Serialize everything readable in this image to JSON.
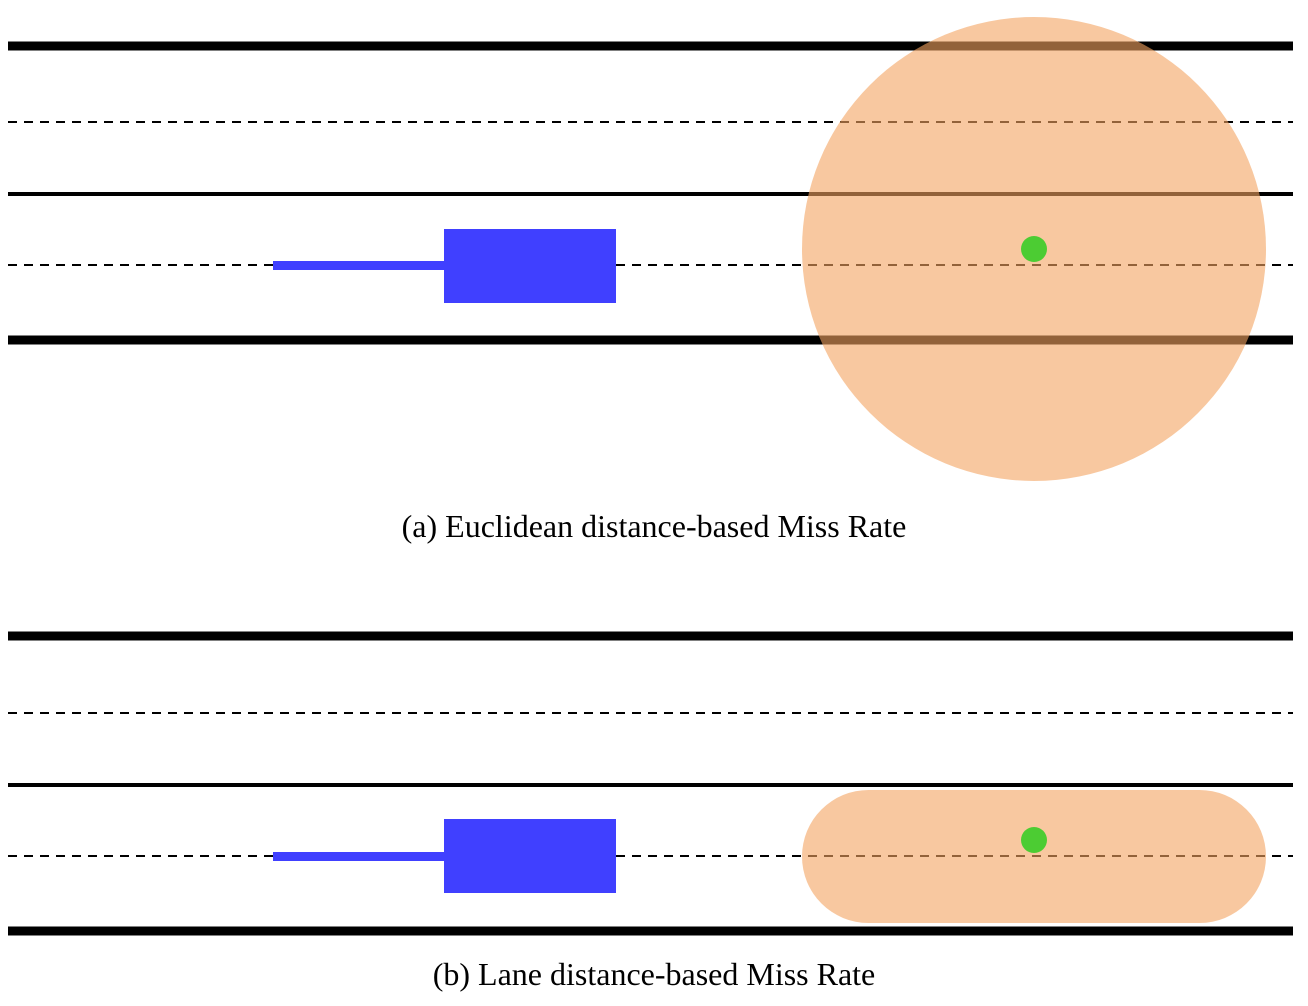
{
  "captions": {
    "a": "(a) Euclidean distance-based Miss Rate",
    "b": "(b) Lane distance-based Miss Rate"
  },
  "colors": {
    "road_line": "#000000",
    "vehicle": "#4040ff",
    "goal_point": "#4ccc33",
    "miss_region": "#f4a460",
    "miss_region_opacity": 0.6
  }
}
